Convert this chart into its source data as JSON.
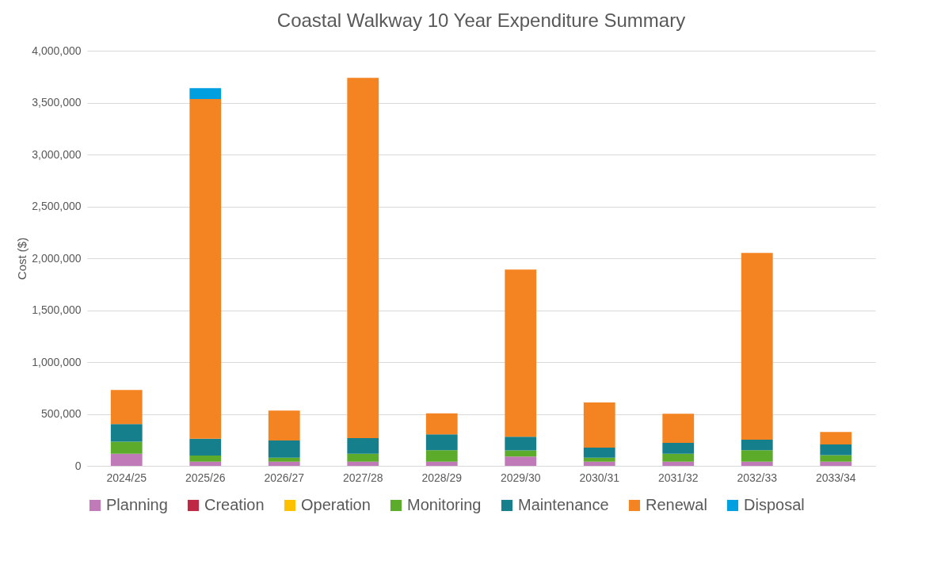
{
  "chart_data": {
    "type": "bar",
    "title": "Coastal Walkway 10 Year Expenditure Summary",
    "ylabel": "Cost ($)",
    "stacked": true,
    "grid": "y",
    "legend": "bottom",
    "categories": [
      "2024/25",
      "2025/26",
      "2026/27",
      "2027/28",
      "2028/29",
      "2029/30",
      "2030/31",
      "2031/32",
      "2032/33",
      "2033/34"
    ],
    "ylim": [
      0,
      4000000
    ],
    "yticks": [
      0,
      {
        "value": 500000,
        "label": "500,000"
      },
      {
        "value": 1000000,
        "label": "1,000,000"
      },
      {
        "value": 1500000,
        "label": "1,500,000"
      },
      {
        "value": 2000000,
        "label": "2,000,000"
      },
      {
        "value": 2500000,
        "label": "2,500,000"
      },
      {
        "value": 3000000,
        "label": "3,000,000"
      },
      {
        "value": 3500000,
        "label": "3,500,000"
      },
      {
        "value": 4000000,
        "label": "4,000,000"
      }
    ],
    "series": [
      {
        "name": "Planning",
        "color": "#c07ab8",
        "values": [
          117000,
          41000,
          41000,
          41000,
          41000,
          89000,
          41000,
          41000,
          41000,
          41000
        ]
      },
      {
        "name": "Creation",
        "color": "#be2844",
        "values": [
          0,
          0,
          0,
          0,
          0,
          0,
          0,
          0,
          0,
          0
        ]
      },
      {
        "name": "Operation",
        "color": "#ffc000",
        "values": [
          0,
          0,
          0,
          0,
          0,
          0,
          0,
          0,
          0,
          0
        ]
      },
      {
        "name": "Monitoring",
        "color": "#5dab2a",
        "values": [
          115000,
          58000,
          38000,
          76000,
          109000,
          59000,
          38000,
          76000,
          109000,
          63000
        ]
      },
      {
        "name": "Maintenance",
        "color": "#157f8c",
        "values": [
          170000,
          163000,
          165000,
          150000,
          153000,
          132000,
          97000,
          104000,
          102000,
          102000
        ]
      },
      {
        "name": "Renewal",
        "color": "#f48321",
        "values": [
          328000,
          3272000,
          288000,
          3471000,
          203000,
          1611000,
          435000,
          280000,
          1799000,
          120000
        ]
      },
      {
        "name": "Disposal",
        "color": "#00a0e0",
        "values": [
          0,
          105000,
          0,
          0,
          0,
          0,
          0,
          0,
          0,
          0
        ]
      }
    ]
  }
}
